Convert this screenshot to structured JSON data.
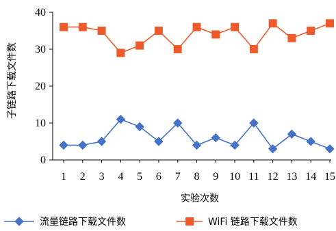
{
  "chart_data": {
    "type": "line",
    "xlabel": "实验次数",
    "ylabel": "子链路下载文件数",
    "x": [
      1,
      2,
      3,
      4,
      5,
      6,
      7,
      8,
      9,
      10,
      11,
      12,
      13,
      14,
      15
    ],
    "x_tick_labels": [
      "1",
      "2",
      "3",
      "4",
      "5",
      "6",
      "7",
      "8",
      "9",
      "10",
      "11",
      "12",
      "13",
      "14",
      "15"
    ],
    "ylim": [
      0,
      40
    ],
    "y_ticks": [
      0,
      10,
      20,
      30,
      40
    ],
    "y_tick_labels": [
      "0",
      "10",
      "20",
      "30",
      "40"
    ],
    "grid": false,
    "legend_position": "bottom",
    "series": [
      {
        "name": "流量链路下载文件数",
        "marker": "diamond",
        "color": "#4472C4",
        "values": [
          4,
          4,
          5,
          11,
          9,
          5,
          10,
          4,
          6,
          4,
          10,
          3,
          7,
          5,
          3
        ]
      },
      {
        "name": "WiFi 链路下载文件数",
        "marker": "square",
        "color": "#ED5B2C",
        "values": [
          36,
          36,
          35,
          29,
          31,
          35,
          30,
          36,
          34,
          36,
          30,
          37,
          33,
          35,
          37
        ]
      }
    ]
  }
}
